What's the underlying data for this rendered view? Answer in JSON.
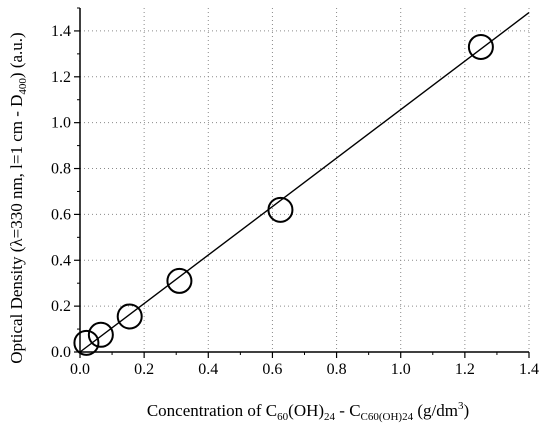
{
  "chart_data": {
    "type": "scatter",
    "xlim": [
      0.0,
      1.4
    ],
    "ylim": [
      0.0,
      1.5
    ],
    "x_ticks": [
      "0.0",
      "0.2",
      "0.4",
      "0.6",
      "0.8",
      "1.0",
      "1.2",
      "1.4"
    ],
    "y_ticks": [
      "0.0",
      "0.2",
      "0.4",
      "0.6",
      "0.8",
      "1.0",
      "1.2",
      "1.4"
    ],
    "x_tick_values": [
      0.0,
      0.2,
      0.4,
      0.6,
      0.8,
      1.0,
      1.2,
      1.4
    ],
    "y_tick_values": [
      0.0,
      0.2,
      0.4,
      0.6,
      0.8,
      1.0,
      1.2,
      1.4
    ],
    "grid": "dotted",
    "xlabel": {
      "prefix": "Concentration of  C",
      "sub1": "60",
      "mid1": "(OH)",
      "sub2": "24",
      "mid2": " - C",
      "sub3": "C60(OH)24",
      "mid3": " (g/dm",
      "sup": "3",
      "suffix": ")"
    },
    "ylabel": {
      "prefix": "Optical  Density (λ=330 nm, l=1 cm - D",
      "sub": "400",
      "suffix": ") (a.u.)"
    },
    "series": [
      {
        "marker": "open-circle",
        "x": [
          0.02,
          0.065,
          0.155,
          0.31,
          0.625,
          1.25
        ],
        "y": [
          0.04,
          0.075,
          0.155,
          0.31,
          0.62,
          1.33
        ]
      }
    ],
    "fit_line": {
      "x": [
        0.0,
        1.4
      ],
      "y": [
        0.0,
        1.48
      ]
    }
  }
}
